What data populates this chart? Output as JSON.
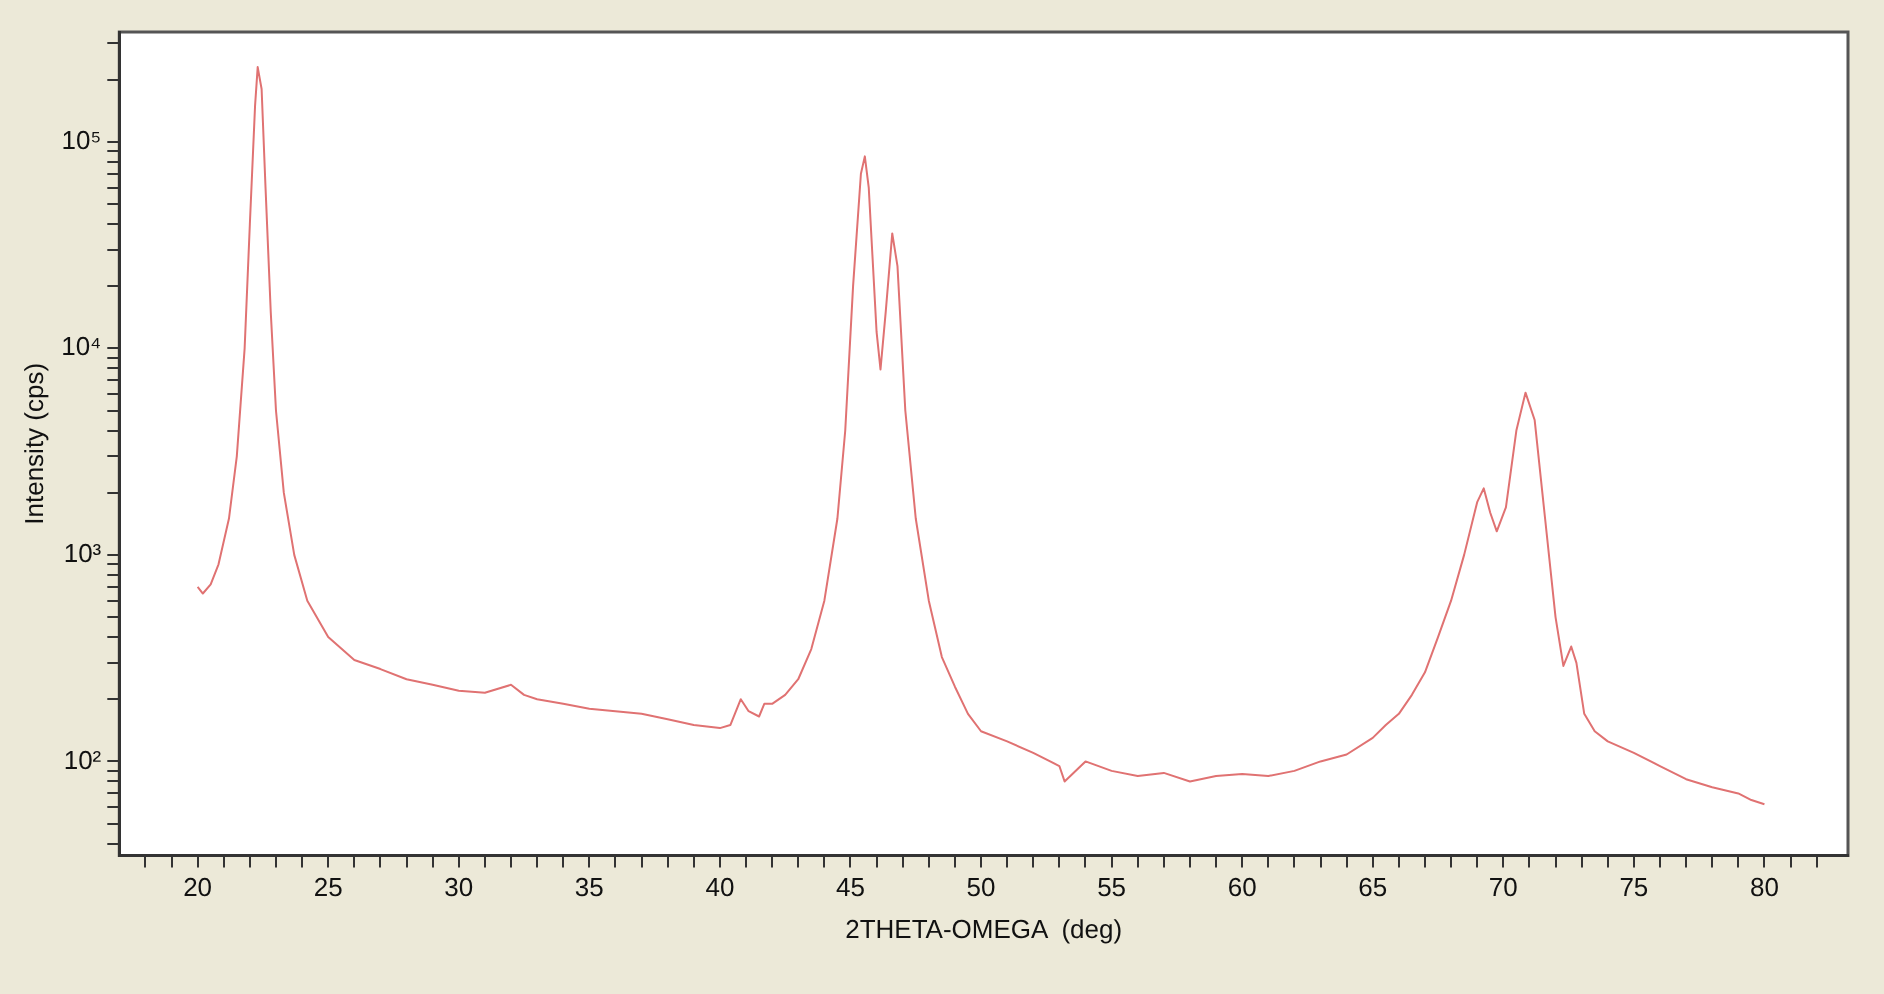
{
  "chart_data": {
    "type": "line",
    "xlabel": "2THETA-OMEGA  (deg)",
    "ylabel": "Intensity (cps)",
    "log": "y",
    "grid": false,
    "legend": false,
    "marker": "none",
    "line_style": "solid",
    "xlim": [
      17,
      83.2
    ],
    "ylim": [
      35,
      340000
    ],
    "xticks": [
      {
        "value": 18,
        "label": null
      },
      {
        "value": 19,
        "label": null
      },
      20,
      {
        "value": 21,
        "label": null
      },
      {
        "value": 22,
        "label": null
      },
      {
        "value": 23,
        "label": null
      },
      {
        "value": 24,
        "label": null
      },
      25,
      {
        "value": 26,
        "label": null
      },
      {
        "value": 27,
        "label": null
      },
      {
        "value": 28,
        "label": null
      },
      {
        "value": 29,
        "label": null
      },
      30,
      {
        "value": 31,
        "label": null
      },
      {
        "value": 32,
        "label": null
      },
      {
        "value": 33,
        "label": null
      },
      {
        "value": 34,
        "label": null
      },
      35,
      {
        "value": 36,
        "label": null
      },
      {
        "value": 37,
        "label": null
      },
      {
        "value": 38,
        "label": null
      },
      {
        "value": 39,
        "label": null
      },
      40,
      {
        "value": 41,
        "label": null
      },
      {
        "value": 42,
        "label": null
      },
      {
        "value": 43,
        "label": null
      },
      {
        "value": 44,
        "label": null
      },
      45,
      {
        "value": 46,
        "label": null
      },
      {
        "value": 47,
        "label": null
      },
      {
        "value": 48,
        "label": null
      },
      {
        "value": 49,
        "label": null
      },
      50,
      {
        "value": 51,
        "label": null
      },
      {
        "value": 52,
        "label": null
      },
      {
        "value": 53,
        "label": null
      },
      {
        "value": 54,
        "label": null
      },
      55,
      {
        "value": 56,
        "label": null
      },
      {
        "value": 57,
        "label": null
      },
      {
        "value": 58,
        "label": null
      },
      {
        "value": 59,
        "label": null
      },
      60,
      {
        "value": 61,
        "label": null
      },
      {
        "value": 62,
        "label": null
      },
      {
        "value": 63,
        "label": null
      },
      {
        "value": 64,
        "label": null
      },
      65,
      {
        "value": 66,
        "label": null
      },
      {
        "value": 67,
        "label": null
      },
      {
        "value": 68,
        "label": null
      },
      {
        "value": 69,
        "label": null
      },
      70,
      {
        "value": 71,
        "label": null
      },
      {
        "value": 72,
        "label": null
      },
      {
        "value": 73,
        "label": null
      },
      {
        "value": 74,
        "label": null
      },
      75,
      {
        "value": 76,
        "label": null
      },
      {
        "value": 77,
        "label": null
      },
      {
        "value": 78,
        "label": null
      },
      {
        "value": 79,
        "label": null
      },
      80,
      {
        "value": 81,
        "label": null
      },
      {
        "value": 82,
        "label": null
      }
    ],
    "yticks": [
      {
        "value": 40,
        "label": null
      },
      {
        "value": 50,
        "label": null
      },
      {
        "value": 60,
        "label": null
      },
      {
        "value": 70,
        "label": null
      },
      {
        "value": 80,
        "label": null
      },
      {
        "value": 90,
        "label": null
      },
      {
        "value": 100,
        "label": "10²"
      },
      {
        "value": 200,
        "label": null
      },
      {
        "value": 300,
        "label": null
      },
      {
        "value": 400,
        "label": null
      },
      {
        "value": 500,
        "label": null
      },
      {
        "value": 600,
        "label": null
      },
      {
        "value": 700,
        "label": null
      },
      {
        "value": 800,
        "label": null
      },
      {
        "value": 900,
        "label": null
      },
      {
        "value": 1000,
        "label": "10³"
      },
      {
        "value": 2000,
        "label": null
      },
      {
        "value": 3000,
        "label": null
      },
      {
        "value": 4000,
        "label": null
      },
      {
        "value": 5000,
        "label": null
      },
      {
        "value": 6000,
        "label": null
      },
      {
        "value": 7000,
        "label": null
      },
      {
        "value": 8000,
        "label": null
      },
      {
        "value": 9000,
        "label": null
      },
      {
        "value": 10000,
        "label": "10⁴"
      },
      {
        "value": 20000,
        "label": null
      },
      {
        "value": 30000,
        "label": null
      },
      {
        "value": 40000,
        "label": null
      },
      {
        "value": 50000,
        "label": null
      },
      {
        "value": 60000,
        "label": null
      },
      {
        "value": 70000,
        "label": null
      },
      {
        "value": 80000,
        "label": null
      },
      {
        "value": 90000,
        "label": null
      },
      {
        "value": 100000,
        "label": "10⁵"
      },
      {
        "value": 200000,
        "label": null
      },
      {
        "value": 300000,
        "label": null
      }
    ],
    "series": [
      {
        "color": "#e07272",
        "x": [
          20.0,
          20.2,
          20.5,
          20.8,
          21.2,
          21.5,
          21.8,
          22.0,
          22.2,
          22.3,
          22.45,
          22.6,
          22.8,
          23.0,
          23.3,
          23.7,
          24.2,
          25,
          26,
          27,
          28,
          29,
          30,
          31,
          32,
          32.5,
          33,
          34,
          35,
          36,
          37,
          38,
          39,
          40,
          40.4,
          40.8,
          41.1,
          41.5,
          41.7,
          42,
          42.5,
          43,
          43.5,
          44,
          44.5,
          44.8,
          45.1,
          45.4,
          45.55,
          45.7,
          46.0,
          46.15,
          46.35,
          46.6,
          46.8,
          47.1,
          47.5,
          48,
          48.5,
          49,
          49.5,
          50,
          51,
          52,
          53,
          53.2,
          54,
          55,
          56,
          57,
          58,
          59,
          60,
          61,
          62,
          63,
          64,
          65,
          65.5,
          66,
          66.5,
          67,
          67.5,
          68,
          68.5,
          69,
          69.25,
          69.5,
          69.75,
          70.1,
          70.5,
          70.85,
          71.2,
          71.6,
          72,
          72.3,
          72.6,
          72.8,
          73.1,
          73.5,
          74,
          75,
          76,
          77,
          78,
          79,
          79.5,
          80
        ],
        "values": [
          700,
          650,
          720,
          900,
          1500,
          3000,
          10000,
          40000,
          150000,
          230000,
          180000,
          60000,
          15000,
          5000,
          2000,
          1000,
          600,
          400,
          310,
          280,
          250,
          235,
          220,
          215,
          235,
          210,
          200,
          190,
          180,
          175,
          170,
          160,
          150,
          145,
          150,
          200,
          175,
          165,
          190,
          190,
          210,
          250,
          350,
          600,
          1500,
          4000,
          20000,
          70000,
          85000,
          60000,
          12000,
          7900,
          15000,
          36000,
          25000,
          5000,
          1500,
          600,
          320,
          230,
          170,
          140,
          125,
          110,
          95,
          80,
          100,
          90,
          85,
          88,
          80,
          85,
          87,
          85,
          90,
          100,
          108,
          130,
          150,
          170,
          210,
          270,
          400,
          600,
          1000,
          1800,
          2100,
          1600,
          1300,
          1700,
          4000,
          6100,
          4500,
          1500,
          500,
          290,
          360,
          300,
          170,
          140,
          125,
          110,
          95,
          82,
          75,
          70,
          65,
          62
        ]
      }
    ]
  }
}
